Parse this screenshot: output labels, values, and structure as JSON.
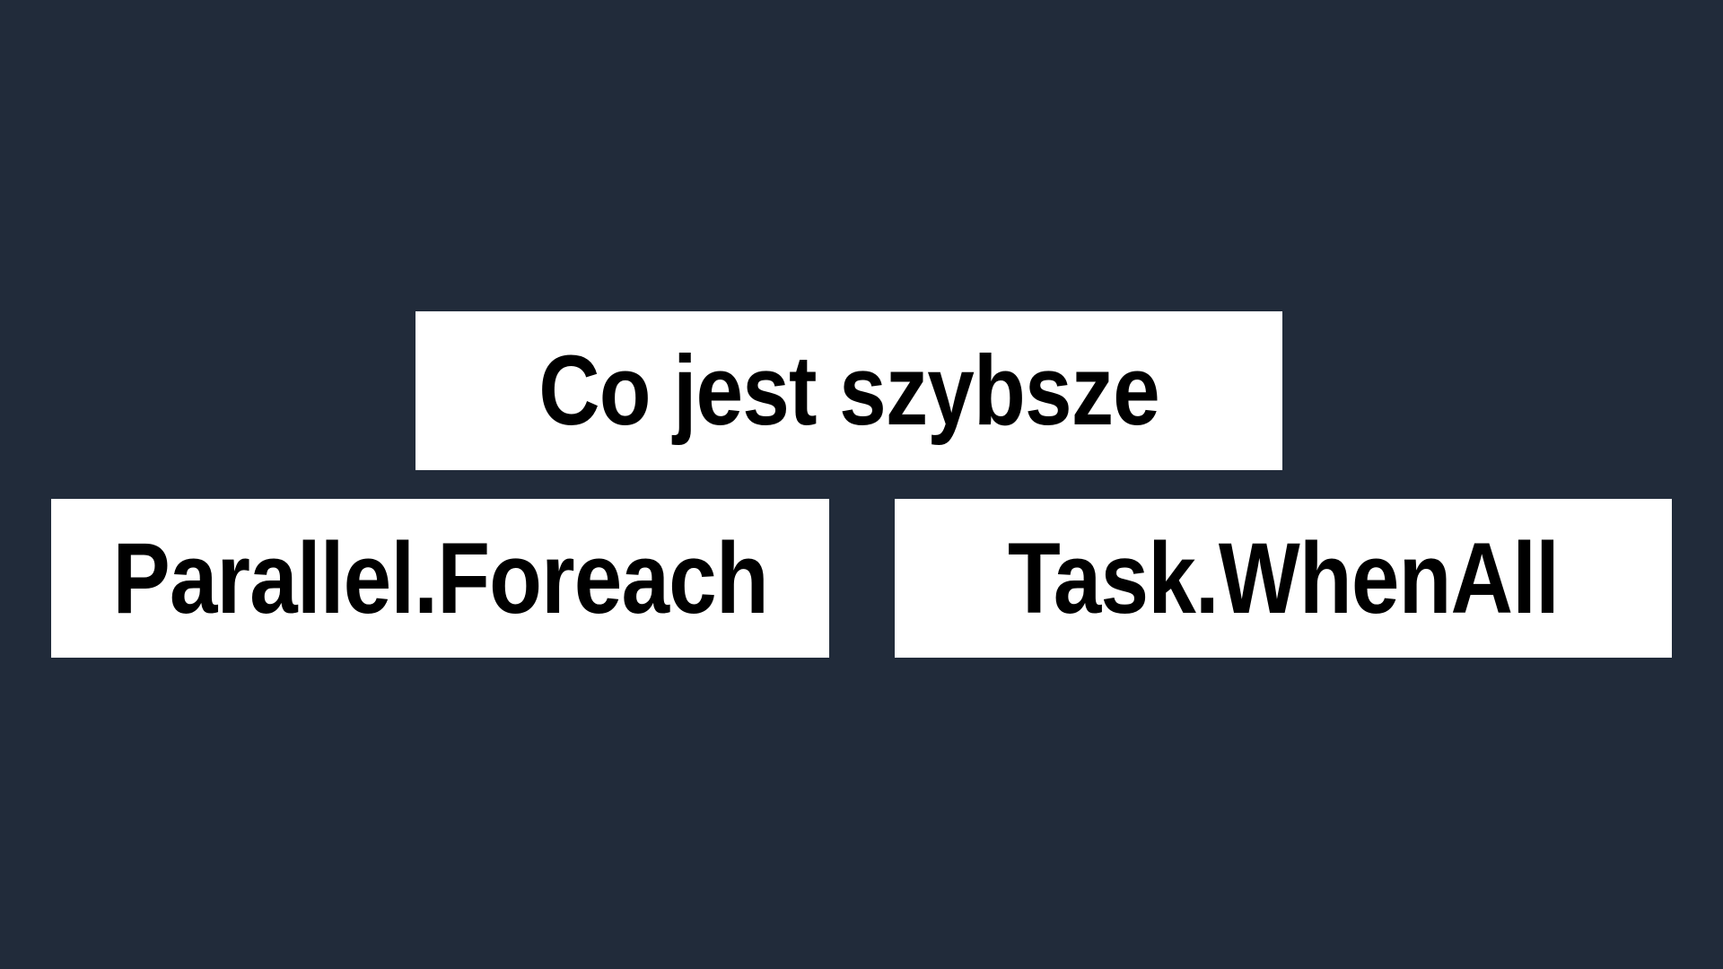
{
  "slide": {
    "background_color": "#212b3a",
    "box_color": "#ffffff",
    "text_color": "#000000",
    "question": "Co jest szybsze",
    "options": [
      {
        "label": "Parallel.Foreach"
      },
      {
        "label": "Task.WhenAll"
      }
    ]
  }
}
